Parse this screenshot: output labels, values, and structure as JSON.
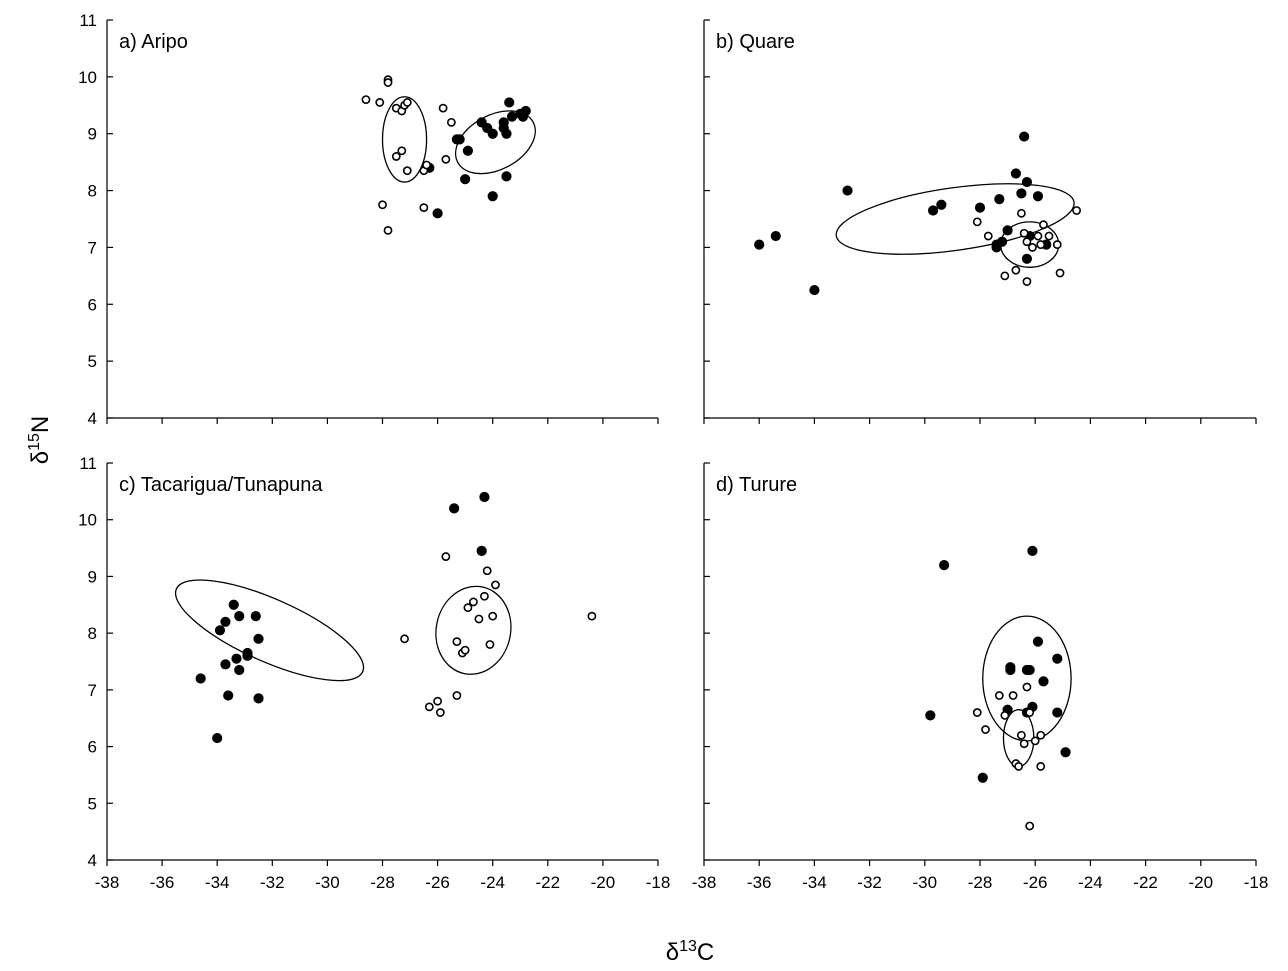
{
  "axes": {
    "xlabel": {
      "symbol": "δ",
      "sup": "13",
      "element": "C"
    },
    "ylabel": {
      "symbol": "δ",
      "sup": "15",
      "element": "N"
    }
  },
  "chart_data": [
    {
      "type": "scatter",
      "title": "a) Aripo",
      "xlim": [
        -38,
        -18
      ],
      "ylim": [
        4,
        11
      ],
      "xticks": [
        -38,
        -36,
        -34,
        -32,
        -30,
        -28,
        -26,
        -24,
        -22,
        -20,
        -18
      ],
      "yticks": [
        4,
        5,
        6,
        7,
        8,
        9,
        10,
        11
      ],
      "xticks_labeled": false,
      "yticks_labeled": true,
      "series": [
        {
          "marker": "filled-circle",
          "points": [
            [
              -26.3,
              8.4
            ],
            [
              -26.0,
              7.6
            ],
            [
              -25.3,
              8.9
            ],
            [
              -25.2,
              8.9
            ],
            [
              -25.0,
              8.2
            ],
            [
              -24.9,
              8.7
            ],
            [
              -24.4,
              9.2
            ],
            [
              -24.2,
              9.1
            ],
            [
              -24.0,
              7.9
            ],
            [
              -24.0,
              9.0
            ],
            [
              -23.6,
              9.2
            ],
            [
              -23.5,
              9.0
            ],
            [
              -23.5,
              8.25
            ],
            [
              -23.4,
              9.55
            ],
            [
              -23.3,
              9.3
            ],
            [
              -23.0,
              9.35
            ],
            [
              -22.8,
              9.4
            ],
            [
              -22.9,
              9.3
            ],
            [
              -23.6,
              9.1
            ]
          ]
        },
        {
          "marker": "open-circle",
          "points": [
            [
              -28.6,
              9.6
            ],
            [
              -28.1,
              9.55
            ],
            [
              -27.8,
              9.95
            ],
            [
              -27.8,
              9.9
            ],
            [
              -27.5,
              9.45
            ],
            [
              -27.3,
              9.4
            ],
            [
              -27.2,
              9.5
            ],
            [
              -27.1,
              9.55
            ],
            [
              -27.5,
              8.6
            ],
            [
              -27.3,
              8.7
            ],
            [
              -27.1,
              8.35
            ],
            [
              -26.5,
              8.35
            ],
            [
              -26.4,
              8.45
            ],
            [
              -26.5,
              7.7
            ],
            [
              -28.0,
              7.75
            ],
            [
              -27.8,
              7.3
            ],
            [
              -25.8,
              9.45
            ],
            [
              -25.5,
              9.2
            ],
            [
              -25.7,
              8.55
            ]
          ]
        }
      ],
      "ellipses": [
        {
          "center": [
            -27.2,
            8.9
          ],
          "x_radius": 0.8,
          "y_radius": 0.75,
          "rotation_deg": 0
        },
        {
          "center": [
            -23.9,
            8.85
          ],
          "x_radius": 1.55,
          "y_radius": 0.48,
          "rotation_deg": 28
        }
      ]
    },
    {
      "type": "scatter",
      "title": "b) Quare",
      "xlim": [
        -38,
        -18
      ],
      "ylim": [
        4,
        11
      ],
      "xticks": [
        -38,
        -36,
        -34,
        -32,
        -30,
        -28,
        -26,
        -24,
        -22,
        -20,
        -18
      ],
      "yticks": [
        4,
        5,
        6,
        7,
        8,
        9,
        10,
        11
      ],
      "xticks_labeled": false,
      "yticks_labeled": false,
      "series": [
        {
          "marker": "filled-circle",
          "points": [
            [
              -36.0,
              7.05
            ],
            [
              -35.4,
              7.2
            ],
            [
              -34.0,
              6.25
            ],
            [
              -32.8,
              8.0
            ],
            [
              -29.7,
              7.65
            ],
            [
              -29.4,
              7.75
            ],
            [
              -28.0,
              7.7
            ],
            [
              -27.4,
              7.05
            ],
            [
              -27.3,
              7.85
            ],
            [
              -27.2,
              7.1
            ],
            [
              -27.0,
              7.3
            ],
            [
              -26.7,
              8.3
            ],
            [
              -26.5,
              7.95
            ],
            [
              -26.4,
              8.95
            ],
            [
              -26.3,
              8.15
            ],
            [
              -26.3,
              6.8
            ],
            [
              -26.2,
              7.2
            ],
            [
              -25.9,
              7.9
            ],
            [
              -25.6,
              7.05
            ],
            [
              -27.4,
              7.0
            ]
          ]
        },
        {
          "marker": "open-circle",
          "points": [
            [
              -28.1,
              7.45
            ],
            [
              -27.7,
              7.2
            ],
            [
              -27.1,
              6.5
            ],
            [
              -26.7,
              6.6
            ],
            [
              -26.5,
              7.6
            ],
            [
              -26.4,
              7.25
            ],
            [
              -26.3,
              7.1
            ],
            [
              -26.1,
              7.0
            ],
            [
              -25.9,
              7.2
            ],
            [
              -25.8,
              7.05
            ],
            [
              -25.7,
              7.4
            ],
            [
              -25.5,
              7.2
            ],
            [
              -25.2,
              7.05
            ],
            [
              -25.1,
              6.55
            ],
            [
              -24.5,
              7.65
            ],
            [
              -26.3,
              6.4
            ]
          ]
        }
      ],
      "ellipses": [
        {
          "center": [
            -28.9,
            7.5
          ],
          "x_radius": 4.35,
          "y_radius": 0.55,
          "rotation_deg": 8
        },
        {
          "center": [
            -26.2,
            7.05
          ],
          "x_radius": 1.05,
          "y_radius": 0.4,
          "rotation_deg": 0
        }
      ]
    },
    {
      "type": "scatter",
      "title": "c) Tacarigua/Tunapuna",
      "xlim": [
        -38,
        -18
      ],
      "ylim": [
        4,
        11
      ],
      "xticks": [
        -38,
        -36,
        -34,
        -32,
        -30,
        -28,
        -26,
        -24,
        -22,
        -20,
        -18
      ],
      "yticks": [
        4,
        5,
        6,
        7,
        8,
        9,
        10,
        11
      ],
      "xticks_labeled": true,
      "yticks_labeled": true,
      "series": [
        {
          "marker": "filled-circle",
          "points": [
            [
              -34.6,
              7.2
            ],
            [
              -34.0,
              6.15
            ],
            [
              -33.9,
              8.05
            ],
            [
              -33.7,
              8.2
            ],
            [
              -33.7,
              7.45
            ],
            [
              -33.6,
              6.9
            ],
            [
              -33.4,
              8.5
            ],
            [
              -33.3,
              7.55
            ],
            [
              -33.2,
              8.3
            ],
            [
              -33.2,
              7.35
            ],
            [
              -32.9,
              7.65
            ],
            [
              -32.9,
              7.6
            ],
            [
              -32.6,
              8.3
            ],
            [
              -32.5,
              7.9
            ],
            [
              -32.5,
              6.85
            ],
            [
              -25.4,
              10.2
            ],
            [
              -24.4,
              9.45
            ],
            [
              -24.3,
              10.4
            ]
          ]
        },
        {
          "marker": "open-circle",
          "points": [
            [
              -27.2,
              7.9
            ],
            [
              -26.3,
              6.7
            ],
            [
              -26.0,
              6.8
            ],
            [
              -25.9,
              6.6
            ],
            [
              -25.7,
              9.35
            ],
            [
              -25.3,
              7.85
            ],
            [
              -25.3,
              6.9
            ],
            [
              -25.1,
              7.65
            ],
            [
              -25.0,
              7.7
            ],
            [
              -24.9,
              8.45
            ],
            [
              -24.7,
              8.55
            ],
            [
              -24.5,
              8.25
            ],
            [
              -24.3,
              8.65
            ],
            [
              -24.2,
              9.1
            ],
            [
              -24.0,
              8.3
            ],
            [
              -24.1,
              7.8
            ],
            [
              -23.9,
              8.85
            ],
            [
              -20.4,
              8.3
            ]
          ]
        }
      ],
      "ellipses": [
        {
          "center": [
            -32.1,
            8.05
          ],
          "x_radius": 3.7,
          "y_radius": 0.55,
          "rotation_deg": -24
        },
        {
          "center": [
            -24.7,
            8.05
          ],
          "x_radius": 1.35,
          "y_radius": 0.78,
          "rotation_deg": -12
        }
      ]
    },
    {
      "type": "scatter",
      "title": "d) Turure",
      "xlim": [
        -38,
        -18
      ],
      "ylim": [
        4,
        11
      ],
      "xticks": [
        -38,
        -36,
        -34,
        -32,
        -30,
        -28,
        -26,
        -24,
        -22,
        -20,
        -18
      ],
      "yticks": [
        4,
        5,
        6,
        7,
        8,
        9,
        10,
        11
      ],
      "xticks_labeled": true,
      "yticks_labeled": false,
      "series": [
        {
          "marker": "filled-circle",
          "points": [
            [
              -29.8,
              6.55
            ],
            [
              -29.3,
              9.2
            ],
            [
              -27.9,
              5.45
            ],
            [
              -27.0,
              6.65
            ],
            [
              -26.9,
              7.4
            ],
            [
              -26.9,
              7.35
            ],
            [
              -26.3,
              7.35
            ],
            [
              -26.2,
              7.35
            ],
            [
              -26.3,
              6.6
            ],
            [
              -26.1,
              6.7
            ],
            [
              -26.1,
              9.45
            ],
            [
              -25.9,
              7.85
            ],
            [
              -25.7,
              7.15
            ],
            [
              -25.2,
              7.55
            ],
            [
              -25.2,
              6.6
            ],
            [
              -24.9,
              5.9
            ]
          ]
        },
        {
          "marker": "open-circle",
          "points": [
            [
              -28.1,
              6.6
            ],
            [
              -27.8,
              6.3
            ],
            [
              -27.3,
              6.9
            ],
            [
              -27.1,
              6.55
            ],
            [
              -26.8,
              6.9
            ],
            [
              -26.7,
              5.7
            ],
            [
              -26.6,
              5.65
            ],
            [
              -26.5,
              6.2
            ],
            [
              -26.4,
              6.05
            ],
            [
              -26.3,
              7.05
            ],
            [
              -26.2,
              6.6
            ],
            [
              -26.0,
              6.1
            ],
            [
              -25.8,
              6.2
            ],
            [
              -25.8,
              5.65
            ],
            [
              -26.2,
              4.6
            ]
          ]
        }
      ],
      "ellipses": [
        {
          "center": [
            -26.3,
            7.2
          ],
          "x_radius": 1.6,
          "y_radius": 1.1,
          "rotation_deg": 0
        },
        {
          "center": [
            -26.6,
            6.15
          ],
          "x_radius": 0.55,
          "y_radius": 0.5,
          "rotation_deg": 0
        }
      ]
    }
  ]
}
